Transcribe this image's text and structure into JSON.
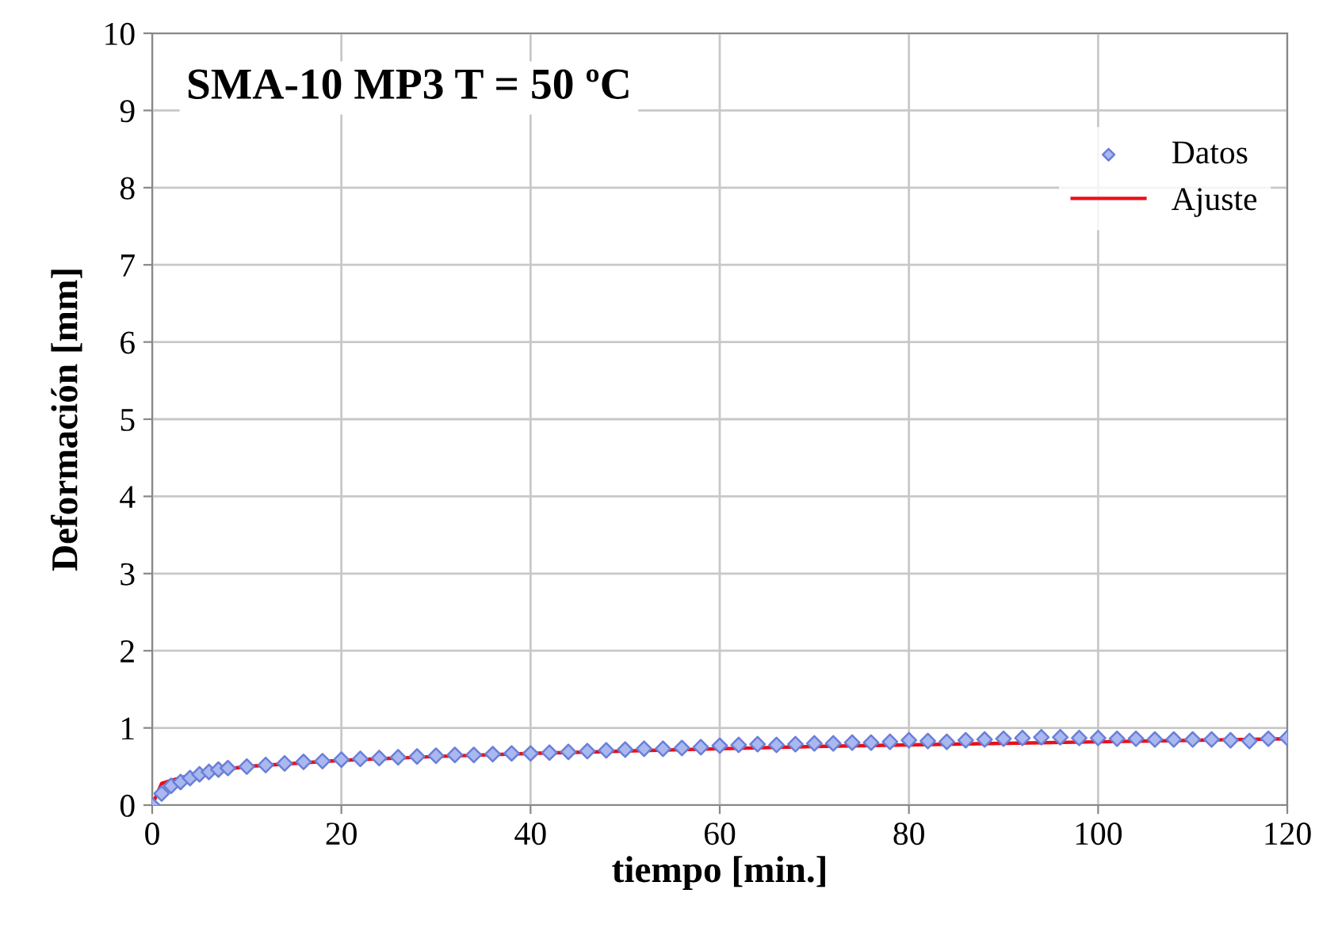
{
  "chart_data": {
    "type": "scatter",
    "title": "SMA-10 MP3 T = 50 ºC",
    "xlabel": "tiempo [min.]",
    "ylabel": "Deformación [mm]",
    "xlim": [
      0,
      120
    ],
    "ylim": [
      0,
      10
    ],
    "xticks": [
      0,
      20,
      40,
      60,
      80,
      100,
      120
    ],
    "yticks": [
      0,
      1,
      2,
      3,
      4,
      5,
      6,
      7,
      8,
      9,
      10
    ],
    "grid": true,
    "legend": "top right",
    "series": [
      {
        "name": "Datos",
        "marker": "diamond",
        "color": "#6a7fd8",
        "x": [
          0,
          1,
          2,
          3,
          4,
          5,
          6,
          7,
          8,
          10,
          12,
          14,
          16,
          18,
          20,
          22,
          24,
          26,
          28,
          30,
          32,
          34,
          36,
          38,
          40,
          42,
          44,
          46,
          48,
          50,
          52,
          54,
          56,
          58,
          60,
          62,
          64,
          66,
          68,
          70,
          72,
          74,
          76,
          78,
          80,
          82,
          84,
          86,
          88,
          90,
          92,
          94,
          96,
          98,
          100,
          102,
          104,
          106,
          108,
          110,
          112,
          114,
          116,
          118,
          120
        ],
        "values": [
          0.0,
          0.15,
          0.25,
          0.3,
          0.35,
          0.4,
          0.43,
          0.46,
          0.48,
          0.5,
          0.52,
          0.54,
          0.56,
          0.57,
          0.59,
          0.6,
          0.61,
          0.62,
          0.63,
          0.64,
          0.65,
          0.65,
          0.66,
          0.67,
          0.67,
          0.68,
          0.69,
          0.7,
          0.71,
          0.72,
          0.73,
          0.73,
          0.74,
          0.75,
          0.77,
          0.78,
          0.79,
          0.78,
          0.79,
          0.8,
          0.8,
          0.81,
          0.81,
          0.82,
          0.84,
          0.83,
          0.82,
          0.84,
          0.85,
          0.86,
          0.87,
          0.88,
          0.88,
          0.87,
          0.87,
          0.86,
          0.86,
          0.85,
          0.85,
          0.85,
          0.85,
          0.84,
          0.83,
          0.86,
          0.87
        ]
      },
      {
        "name": "Ajuste",
        "type": "line",
        "line_style": "solid",
        "color": "#e8101a",
        "x": [
          0,
          1,
          2,
          5,
          10,
          20,
          30,
          40,
          50,
          60,
          70,
          80,
          90,
          100,
          110,
          120
        ],
        "values": [
          0.0,
          0.28,
          0.32,
          0.42,
          0.5,
          0.58,
          0.63,
          0.67,
          0.7,
          0.73,
          0.76,
          0.78,
          0.8,
          0.82,
          0.84,
          0.86
        ]
      }
    ]
  }
}
